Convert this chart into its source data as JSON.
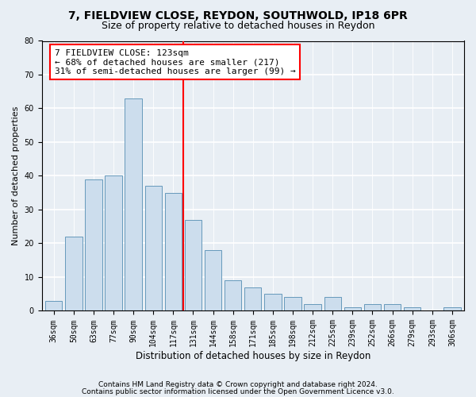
{
  "title1": "7, FIELDVIEW CLOSE, REYDON, SOUTHWOLD, IP18 6PR",
  "title2": "Size of property relative to detached houses in Reydon",
  "xlabel": "Distribution of detached houses by size in Reydon",
  "ylabel": "Number of detached properties",
  "categories": [
    "36sqm",
    "50sqm",
    "63sqm",
    "77sqm",
    "90sqm",
    "104sqm",
    "117sqm",
    "131sqm",
    "144sqm",
    "158sqm",
    "171sqm",
    "185sqm",
    "198sqm",
    "212sqm",
    "225sqm",
    "239sqm",
    "252sqm",
    "266sqm",
    "279sqm",
    "293sqm",
    "306sqm"
  ],
  "values": [
    3,
    22,
    39,
    40,
    63,
    37,
    35,
    27,
    18,
    9,
    7,
    5,
    4,
    2,
    4,
    1,
    2,
    2,
    1,
    0,
    1
  ],
  "bar_color": "#ccdded",
  "bar_edge_color": "#6699bb",
  "vline_color": "red",
  "annotation_title": "7 FIELDVIEW CLOSE: 123sqm",
  "annotation_line1": "← 68% of detached houses are smaller (217)",
  "annotation_line2": "31% of semi-detached houses are larger (99) →",
  "ylim": [
    0,
    80
  ],
  "yticks": [
    0,
    10,
    20,
    30,
    40,
    50,
    60,
    70,
    80
  ],
  "footnote1": "Contains HM Land Registry data © Crown copyright and database right 2024.",
  "footnote2": "Contains public sector information licensed under the Open Government Licence v3.0.",
  "bg_color": "#e8eef4",
  "plot_bg_color": "#e8eef4",
  "title1_fontsize": 10,
  "title2_fontsize": 9,
  "xlabel_fontsize": 8.5,
  "ylabel_fontsize": 8,
  "tick_fontsize": 7,
  "annotation_fontsize": 8,
  "footnote_fontsize": 6.5
}
